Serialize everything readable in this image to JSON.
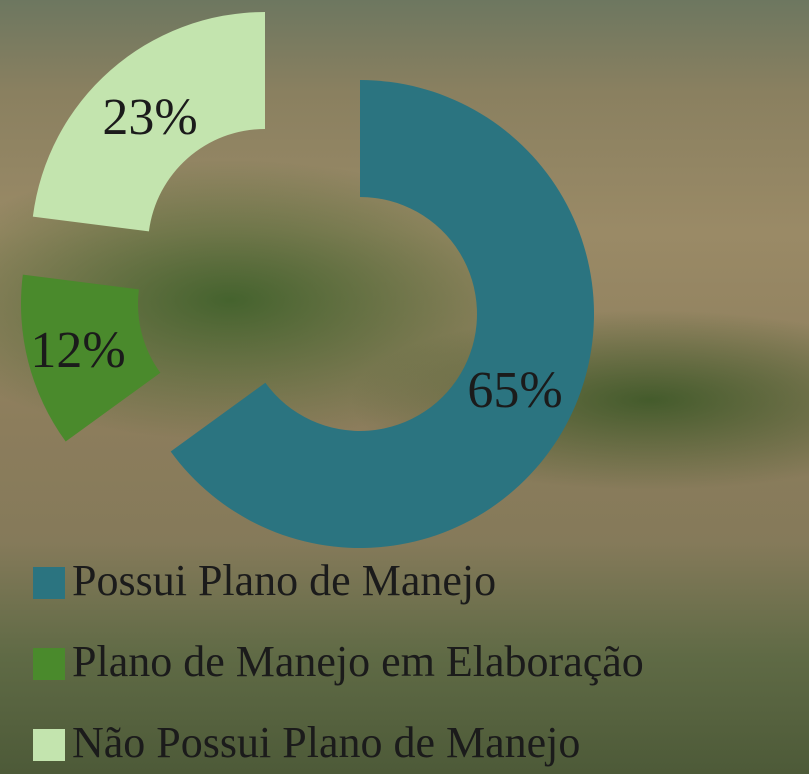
{
  "chart_data": {
    "type": "donut",
    "categories": [
      "Possui Plano de Manejo",
      "Plano de Manejo em Elaboração",
      "Não Possui Plano de Manejo"
    ],
    "values": [
      65,
      12,
      23
    ],
    "value_labels": [
      "65%",
      "12%",
      "23%"
    ],
    "colors": [
      "#2b7480",
      "#4a8a2c",
      "#c3e4ae"
    ],
    "legend": "bottom"
  }
}
